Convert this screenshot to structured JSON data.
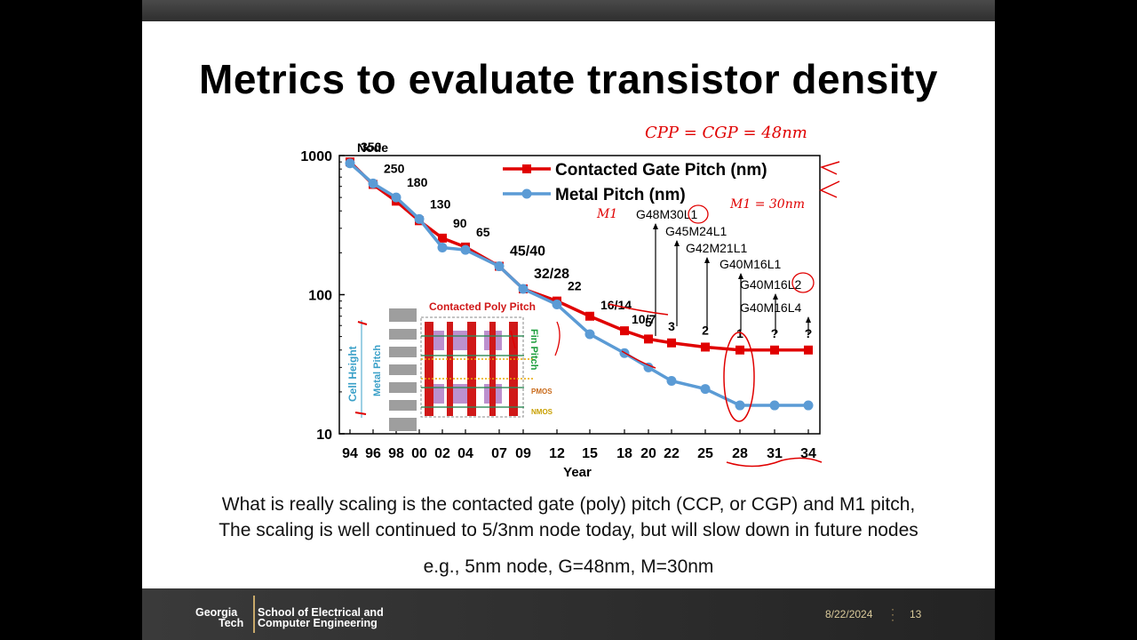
{
  "slide": {
    "title": "Metrics to evaluate transistor density",
    "body_lines": [
      "What is really scaling is the contacted gate (poly) pitch (CCP, or CGP) and M1 pitch,",
      "The scaling is well continued to 5/3nm node today, but will slow down in future nodes",
      "e.g., 5nm node, G=48nm, M=30nm"
    ],
    "handwritten_notes": [
      "CPP = CGP = 48nm",
      "M1 = 30nm",
      "M1"
    ],
    "footer": {
      "logo_line1": "Georgia",
      "logo_line2": "Tech",
      "school_line1": "School of Electrical and",
      "school_line2": "Computer Engineering",
      "date": "8/22/2024",
      "page": "13"
    }
  },
  "colors": {
    "cgp": "#e00000",
    "mp": "#5b9bd5",
    "annotation": "#e00000"
  },
  "chart_data": {
    "type": "line",
    "scale": "log-y",
    "xlabel": "Year",
    "ylabel": "",
    "x_top_label": "Node",
    "ylim": [
      10,
      1000
    ],
    "y_ticks": [
      "10",
      "100",
      "1000"
    ],
    "categories": [
      "94",
      "96",
      "98",
      "00",
      "02",
      "04",
      "07",
      "09",
      "12",
      "15",
      "18",
      "20",
      "22",
      "25",
      "28",
      "31",
      "34"
    ],
    "series": [
      {
        "name": "Contacted Gate Pitch (nm)",
        "color": "#e00000",
        "marker": "square",
        "values": [
          900,
          620,
          470,
          340,
          255,
          220,
          160,
          110,
          90,
          70,
          55,
          48,
          45,
          42,
          40,
          40,
          40
        ]
      },
      {
        "name": "Metal Pitch (nm)",
        "color": "#5b9bd5",
        "marker": "circle",
        "values": [
          880,
          630,
          500,
          350,
          218,
          210,
          160,
          110,
          85,
          52,
          38,
          30,
          24,
          21,
          16,
          16,
          16
        ]
      }
    ],
    "node_labels": [
      {
        "cat": "94",
        "text": "350"
      },
      {
        "cat": "96",
        "text": "250"
      },
      {
        "cat": "98",
        "text": "180"
      },
      {
        "cat": "00",
        "text": "130"
      },
      {
        "cat": "02",
        "text": "90"
      },
      {
        "cat": "04",
        "text": "65"
      },
      {
        "cat": "07",
        "text": "45/40"
      },
      {
        "cat": "09",
        "text": "32/28"
      },
      {
        "cat": "12",
        "text": "22"
      },
      {
        "cat": "15",
        "text": "16/14"
      },
      {
        "cat": "18",
        "text": "10/7"
      },
      {
        "cat": "20",
        "text": "5"
      },
      {
        "cat": "22",
        "text": "3"
      },
      {
        "cat": "25",
        "text": "2"
      },
      {
        "cat": "28",
        "text": "1"
      },
      {
        "cat": "31",
        "text": "?"
      },
      {
        "cat": "34",
        "text": "?"
      }
    ],
    "annotations": [
      "G48M30L1",
      "G45M24L1",
      "G42M21L1",
      "G40M16L1",
      "G40M16L2",
      "G40M16L4"
    ],
    "inset": {
      "top_label": "Contacted Poly Pitch",
      "left_label_1": "Cell Height",
      "left_label_2": "Metal Pitch",
      "right_label": "Fin Pitch",
      "pmos_label": "PMOS",
      "nmos_label": "NMOS"
    }
  }
}
